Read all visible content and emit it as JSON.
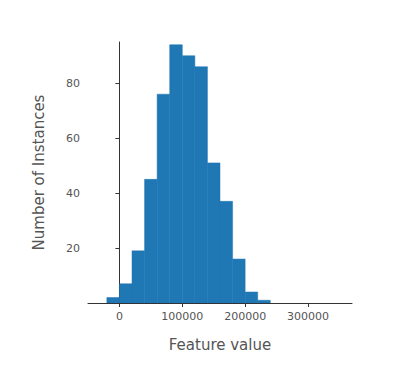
{
  "chart_data": {
    "type": "histogram",
    "x_label": "Feature value",
    "y_label": "Number of Instances",
    "bins": [
      -20000,
      0,
      20000,
      40000,
      60000,
      80000,
      100000,
      120000,
      140000,
      160000,
      180000,
      200000,
      220000,
      240000
    ],
    "counts": [
      2,
      7,
      19,
      45,
      76,
      94,
      90,
      86,
      51,
      37,
      16,
      4,
      1
    ],
    "color": "#1f77b4",
    "xlim": [
      -50000,
      370000
    ],
    "xticks": [
      0,
      100000,
      200000,
      300000
    ],
    "ylim": [
      0,
      95
    ],
    "yticks": [
      20,
      40,
      60,
      80
    ],
    "grid": false
  }
}
